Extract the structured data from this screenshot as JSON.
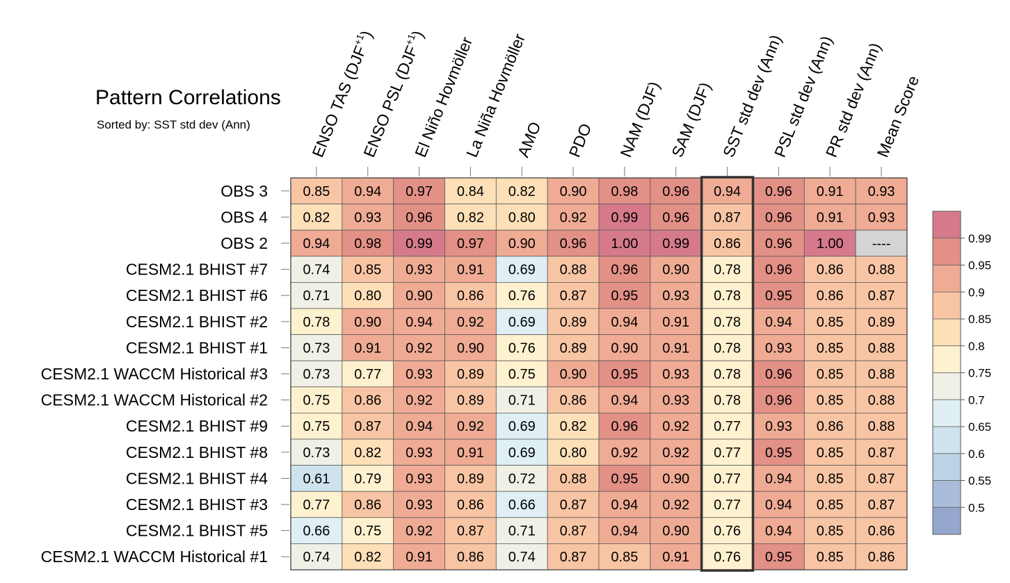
{
  "chart_data": {
    "type": "heatmap",
    "title": "Pattern Correlations",
    "subtitle": "Sorted by: SST std dev (Ann)",
    "columns": [
      {
        "label": "ENSO TAS (DJF",
        "sup": "+1",
        "tail": ")"
      },
      {
        "label": "ENSO PSL (DJF",
        "sup": "+1",
        "tail": ")"
      },
      {
        "label": "El Niño Hovmöller"
      },
      {
        "label": "La Niña Hovmöller"
      },
      {
        "label": "AMO"
      },
      {
        "label": "PDO"
      },
      {
        "label": "NAM (DJF)"
      },
      {
        "label": "SAM (DJF)"
      },
      {
        "label": "SST std dev (Ann)"
      },
      {
        "label": "PSL std dev (Ann)"
      },
      {
        "label": "PR std dev (Ann)"
      },
      {
        "label": "Mean Score"
      }
    ],
    "rows": [
      "OBS 3",
      "OBS 4",
      "OBS 2",
      "CESM2.1 BHIST #7",
      "CESM2.1 BHIST #6",
      "CESM2.1 BHIST #2",
      "CESM2.1 BHIST #1",
      "CESM2.1 WACCM Historical #3",
      "CESM2.1 WACCM Historical #2",
      "CESM2.1 BHIST #9",
      "CESM2.1 BHIST #8",
      "CESM2.1 BHIST #4",
      "CESM2.1 BHIST #3",
      "CESM2.1 BHIST #5",
      "CESM2.1 WACCM Historical #1"
    ],
    "values": [
      [
        "0.85",
        "0.94",
        "0.97",
        "0.84",
        "0.82",
        "0.90",
        "0.98",
        "0.96",
        "0.94",
        "0.96",
        "0.91",
        "0.93"
      ],
      [
        "0.82",
        "0.93",
        "0.96",
        "0.82",
        "0.80",
        "0.92",
        "0.99",
        "0.96",
        "0.87",
        "0.96",
        "0.91",
        "0.93"
      ],
      [
        "0.94",
        "0.98",
        "0.99",
        "0.97",
        "0.90",
        "0.96",
        "1.00",
        "0.99",
        "0.86",
        "0.96",
        "1.00",
        "----"
      ],
      [
        "0.74",
        "0.85",
        "0.93",
        "0.91",
        "0.69",
        "0.88",
        "0.96",
        "0.90",
        "0.78",
        "0.96",
        "0.86",
        "0.88"
      ],
      [
        "0.71",
        "0.80",
        "0.90",
        "0.86",
        "0.76",
        "0.87",
        "0.95",
        "0.93",
        "0.78",
        "0.95",
        "0.86",
        "0.87"
      ],
      [
        "0.78",
        "0.90",
        "0.94",
        "0.92",
        "0.69",
        "0.89",
        "0.94",
        "0.91",
        "0.78",
        "0.94",
        "0.85",
        "0.89"
      ],
      [
        "0.73",
        "0.91",
        "0.92",
        "0.90",
        "0.76",
        "0.89",
        "0.90",
        "0.91",
        "0.78",
        "0.93",
        "0.85",
        "0.88"
      ],
      [
        "0.73",
        "0.77",
        "0.93",
        "0.89",
        "0.75",
        "0.90",
        "0.95",
        "0.93",
        "0.78",
        "0.96",
        "0.85",
        "0.88"
      ],
      [
        "0.75",
        "0.86",
        "0.92",
        "0.89",
        "0.71",
        "0.86",
        "0.94",
        "0.93",
        "0.78",
        "0.96",
        "0.85",
        "0.88"
      ],
      [
        "0.75",
        "0.87",
        "0.94",
        "0.92",
        "0.69",
        "0.82",
        "0.96",
        "0.92",
        "0.77",
        "0.93",
        "0.86",
        "0.88"
      ],
      [
        "0.73",
        "0.82",
        "0.93",
        "0.91",
        "0.69",
        "0.80",
        "0.92",
        "0.92",
        "0.77",
        "0.95",
        "0.85",
        "0.87"
      ],
      [
        "0.61",
        "0.79",
        "0.93",
        "0.89",
        "0.72",
        "0.88",
        "0.95",
        "0.90",
        "0.77",
        "0.94",
        "0.85",
        "0.87"
      ],
      [
        "0.77",
        "0.86",
        "0.93",
        "0.86",
        "0.66",
        "0.87",
        "0.94",
        "0.92",
        "0.77",
        "0.94",
        "0.85",
        "0.87"
      ],
      [
        "0.66",
        "0.75",
        "0.92",
        "0.87",
        "0.71",
        "0.87",
        "0.94",
        "0.90",
        "0.76",
        "0.94",
        "0.85",
        "0.86"
      ],
      [
        "0.74",
        "0.82",
        "0.91",
        "0.86",
        "0.74",
        "0.87",
        "0.85",
        "0.91",
        "0.76",
        "0.95",
        "0.85",
        "0.86"
      ]
    ],
    "highlight_column": "SST std dev (Ann)",
    "missing_color": "#d4d4d4",
    "colorbar": {
      "labels": [
        "0.99",
        "0.95",
        "0.9",
        "0.85",
        "0.8",
        "0.75",
        "0.7",
        "0.65",
        "0.6",
        "0.55",
        "0.5"
      ],
      "bounds": [
        0.5,
        0.55,
        0.6,
        0.65,
        0.7,
        0.75,
        0.8,
        0.85,
        0.9,
        0.95,
        0.99
      ],
      "colors_low_to_high": [
        "#95a7cd",
        "#a9bddb",
        "#bcd3e6",
        "#cfe3ee",
        "#dfeff4",
        "#f0f0e6",
        "#fef1cf",
        "#fde0b8",
        "#f8c5a4",
        "#efab94",
        "#e39086",
        "#d67a8b"
      ]
    },
    "xlabel": "",
    "ylabel": ""
  }
}
